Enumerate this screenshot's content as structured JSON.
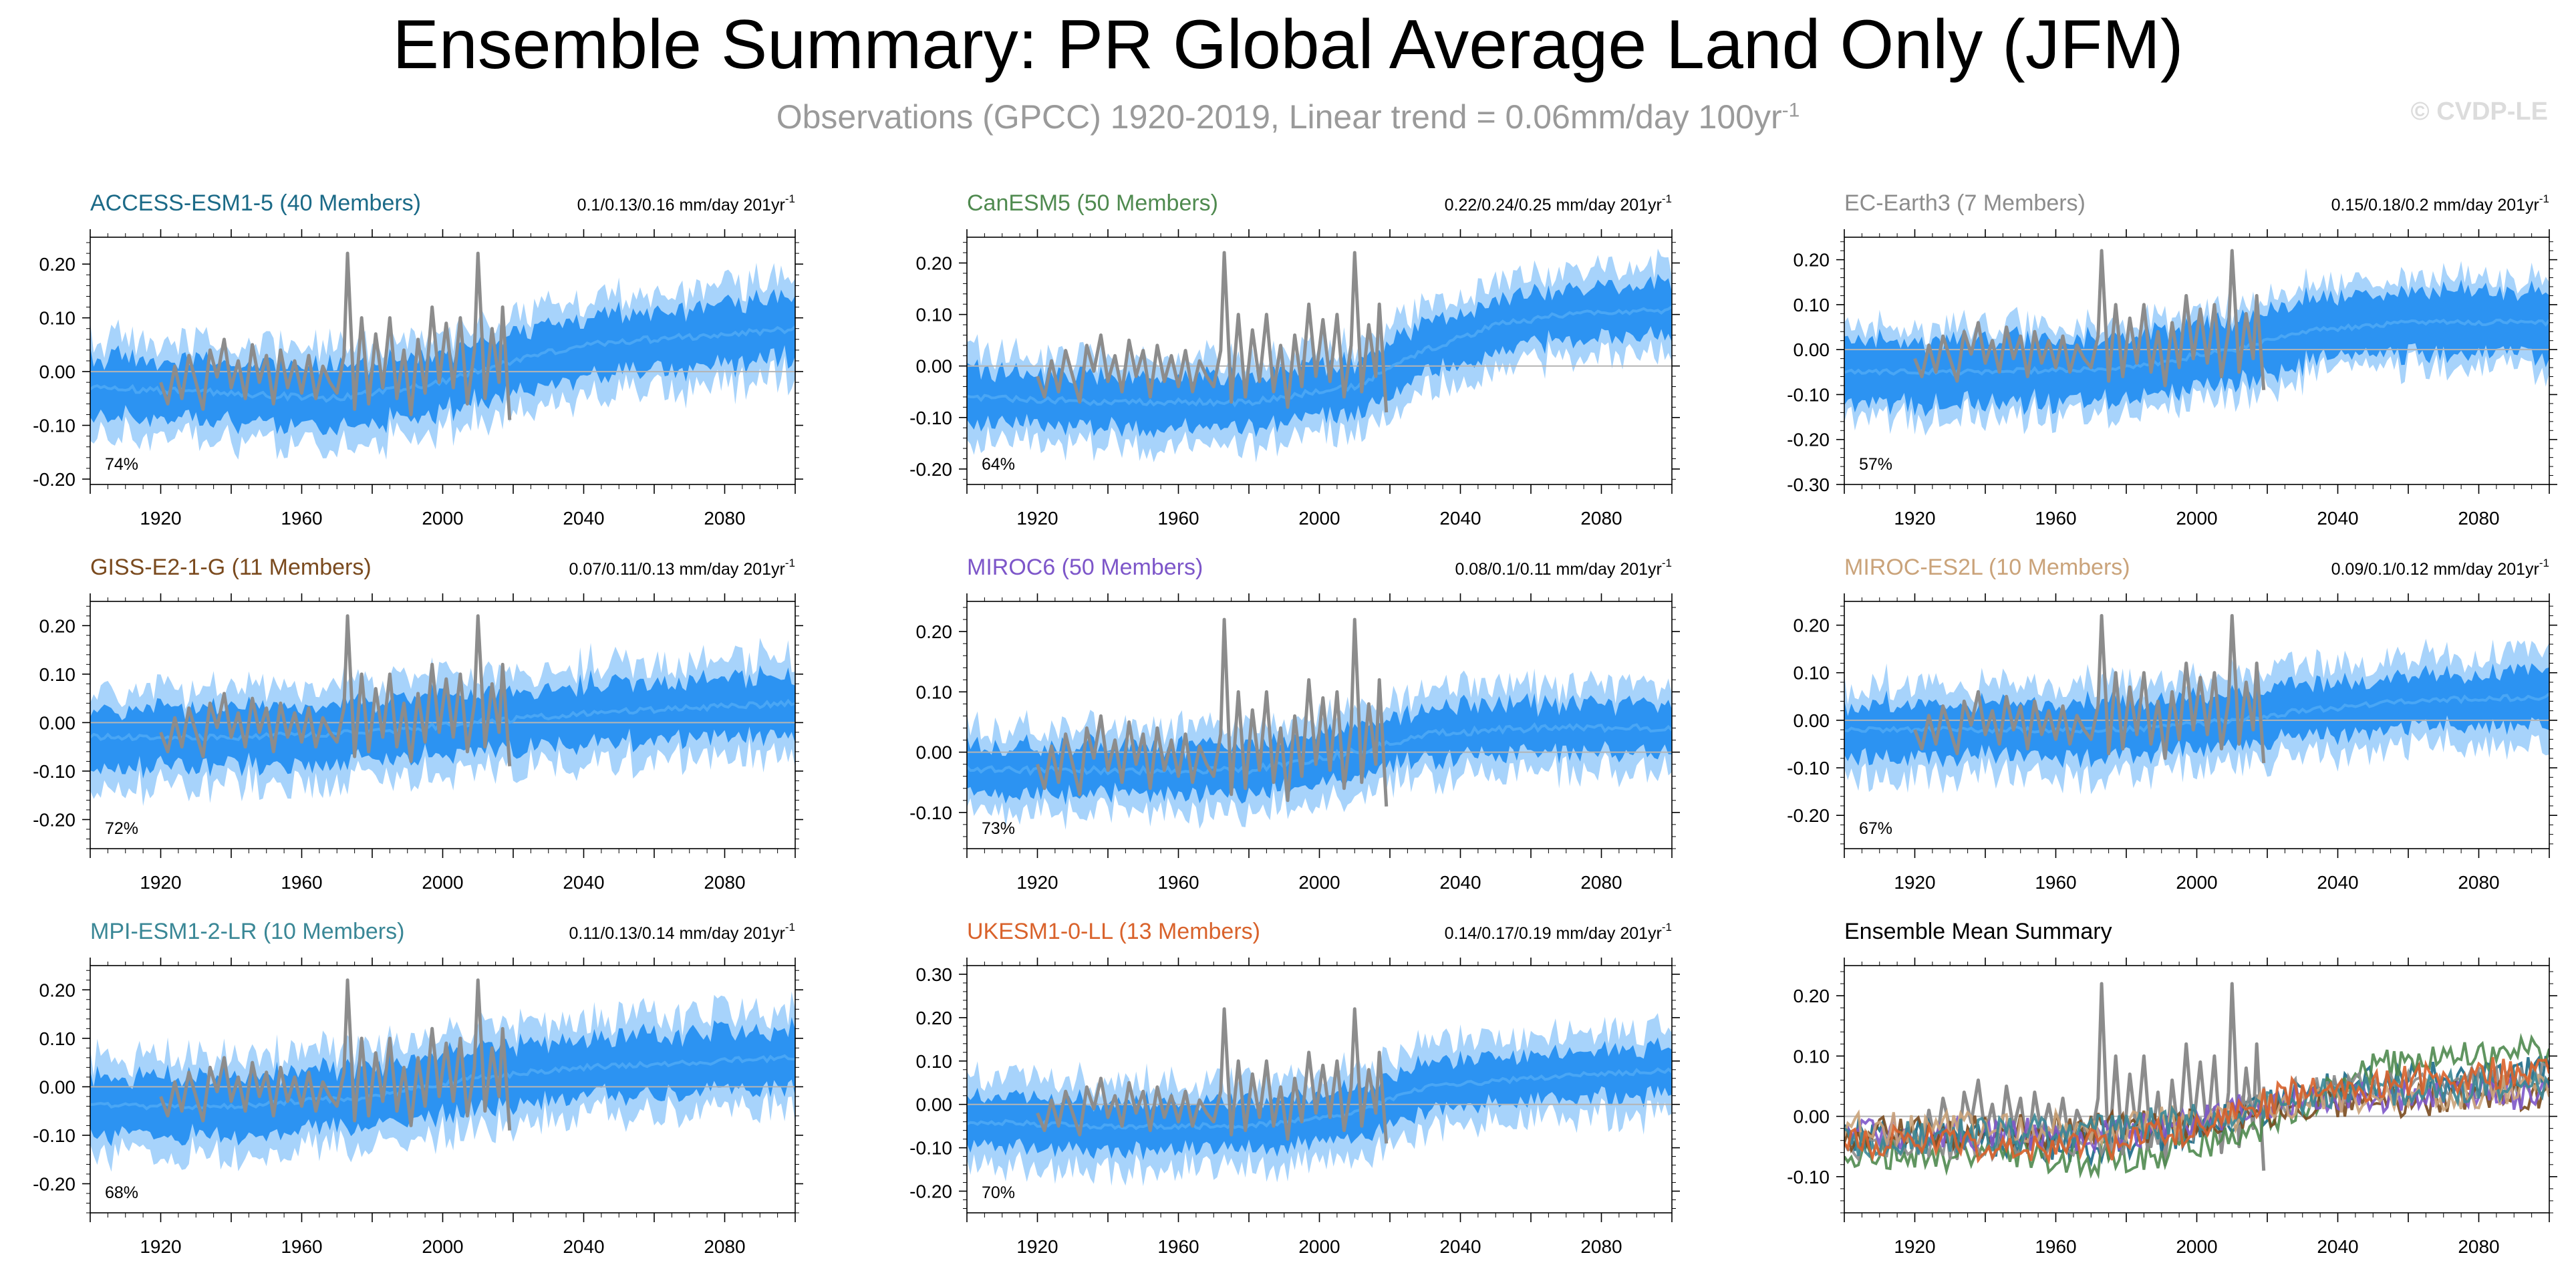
{
  "title": "Ensemble Summary: PR Global Average Land Only (JFM)",
  "subtitle_main": "Observations (GPCC) 1920-2019, Linear trend = 0.06mm/day 100yr",
  "subtitle_sup": "-1",
  "watermark": "© CVDP-LE",
  "colors": {
    "obs": "#8c8c8c",
    "band_outer": "#a7d3fb",
    "band_inner": "#2c93f2",
    "mean": "#4da8f5",
    "zero_line": "#b4b4b4"
  },
  "chart_data": [
    {
      "type": "area",
      "title": "ACCESS-ESM1-5 (40 Members)",
      "title_color": "#1b6a87",
      "trend_text": "0.1/0.13/0.16 mm/day 201yr",
      "trend_sup": "-1",
      "percent_label": "74%",
      "xlim": [
        1900,
        2100
      ],
      "ylim": [
        -0.21,
        0.25
      ],
      "yticks": [
        "0.20",
        "0.10",
        "0.00",
        "-0.10",
        "-0.20"
      ],
      "ytick_values": [
        0.2,
        0.1,
        0.0,
        -0.1,
        -0.2
      ],
      "xticks": [
        "1920",
        "1960",
        "2000",
        "2040",
        "2080"
      ],
      "ensemble_mean": [
        [
          1900,
          -0.03
        ],
        [
          1940,
          -0.04
        ],
        [
          1970,
          -0.05
        ],
        [
          2000,
          -0.02
        ],
        [
          2020,
          0.02
        ],
        [
          2040,
          0.05
        ],
        [
          2060,
          0.06
        ],
        [
          2080,
          0.07
        ],
        [
          2100,
          0.08
        ]
      ],
      "spread_inner_halfwidth": 0.055,
      "spread_outer_halfwidth": 0.09
    },
    {
      "type": "area",
      "title": "CanESM5 (50 Members)",
      "title_color": "#4f8a4f",
      "trend_text": "0.22/0.24/0.25 mm/day 201yr",
      "trend_sup": "-1",
      "percent_label": "64%",
      "xlim": [
        1900,
        2100
      ],
      "ylim": [
        -0.23,
        0.25
      ],
      "yticks": [
        "0.20",
        "0.10",
        "0.00",
        "-0.10",
        "-0.20"
      ],
      "ytick_values": [
        0.2,
        0.1,
        0.0,
        -0.1,
        -0.2
      ],
      "xticks": [
        "1920",
        "1960",
        "2000",
        "2040",
        "2080"
      ],
      "ensemble_mean": [
        [
          1900,
          -0.06
        ],
        [
          1940,
          -0.07
        ],
        [
          1980,
          -0.07
        ],
        [
          2010,
          -0.04
        ],
        [
          2030,
          0.03
        ],
        [
          2050,
          0.08
        ],
        [
          2070,
          0.1
        ],
        [
          2100,
          0.11
        ]
      ],
      "spread_inner_halfwidth": 0.05,
      "spread_outer_halfwidth": 0.085
    },
    {
      "type": "area",
      "title": "EC-Earth3 (7 Members)",
      "title_color": "#8c8c8c",
      "trend_text": "0.15/0.18/0.2 mm/day 201yr",
      "trend_sup": "-1",
      "percent_label": "57%",
      "xlim": [
        1900,
        2100
      ],
      "ylim": [
        -0.3,
        0.25
      ],
      "yticks": [
        "0.20",
        "0.10",
        "0.00",
        "-0.10",
        "-0.20",
        "-0.30"
      ],
      "ytick_values": [
        0.2,
        0.1,
        0.0,
        -0.1,
        -0.2,
        -0.3
      ],
      "xticks": [
        "1920",
        "1960",
        "2000",
        "2040",
        "2080"
      ],
      "ensemble_mean": [
        [
          1900,
          -0.05
        ],
        [
          1940,
          -0.05
        ],
        [
          1980,
          -0.04
        ],
        [
          2010,
          0.0
        ],
        [
          2030,
          0.04
        ],
        [
          2060,
          0.06
        ],
        [
          2100,
          0.06
        ]
      ],
      "spread_inner_halfwidth": 0.07,
      "spread_outer_halfwidth": 0.1
    },
    {
      "type": "area",
      "title": "GISS-E2-1-G (11 Members)",
      "title_color": "#7a4a1e",
      "trend_text": "0.07/0.11/0.13 mm/day 201yr",
      "trend_sup": "-1",
      "percent_label": "72%",
      "xlim": [
        1900,
        2100
      ],
      "ylim": [
        -0.26,
        0.25
      ],
      "yticks": [
        "0.20",
        "0.10",
        "0.00",
        "-0.10",
        "-0.20"
      ],
      "ytick_values": [
        0.2,
        0.1,
        0.0,
        -0.1,
        -0.2
      ],
      "xticks": [
        "1920",
        "1960",
        "2000",
        "2040",
        "2080"
      ],
      "ensemble_mean": [
        [
          1900,
          -0.03
        ],
        [
          1940,
          -0.03
        ],
        [
          1980,
          -0.02
        ],
        [
          2010,
          0.0
        ],
        [
          2040,
          0.02
        ],
        [
          2070,
          0.03
        ],
        [
          2100,
          0.04
        ]
      ],
      "spread_inner_halfwidth": 0.06,
      "spread_outer_halfwidth": 0.1
    },
    {
      "type": "area",
      "title": "MIROC6 (50 Members)",
      "title_color": "#7d56c9",
      "trend_text": "0.08/0.1/0.11 mm/day 201yr",
      "trend_sup": "-1",
      "percent_label": "73%",
      "xlim": [
        1900,
        2100
      ],
      "ylim": [
        -0.16,
        0.25
      ],
      "yticks": [
        "0.20",
        "0.10",
        "0.00",
        "-0.10"
      ],
      "ytick_values": [
        0.2,
        0.1,
        0.0,
        -0.1
      ],
      "xticks": [
        "1920",
        "1960",
        "2000",
        "2040",
        "2080"
      ],
      "ensemble_mean": [
        [
          1900,
          -0.03
        ],
        [
          1940,
          -0.03
        ],
        [
          1980,
          -0.03
        ],
        [
          2010,
          0.0
        ],
        [
          2030,
          0.03
        ],
        [
          2060,
          0.04
        ],
        [
          2100,
          0.04
        ]
      ],
      "spread_inner_halfwidth": 0.04,
      "spread_outer_halfwidth": 0.07
    },
    {
      "type": "area",
      "title": "MIROC-ES2L (10 Members)",
      "title_color": "#caa37a",
      "trend_text": "0.09/0.1/0.12 mm/day 201yr",
      "trend_sup": "-1",
      "percent_label": "67%",
      "xlim": [
        1900,
        2100
      ],
      "ylim": [
        -0.27,
        0.25
      ],
      "yticks": [
        "0.20",
        "0.10",
        "0.00",
        "-0.10",
        "-0.20"
      ],
      "ytick_values": [
        0.2,
        0.1,
        0.0,
        -0.1,
        -0.2
      ],
      "xticks": [
        "1920",
        "1960",
        "2000",
        "2040",
        "2080"
      ],
      "ensemble_mean": [
        [
          1900,
          -0.02
        ],
        [
          1940,
          -0.02
        ],
        [
          1980,
          -0.02
        ],
        [
          2010,
          0.0
        ],
        [
          2030,
          0.02
        ],
        [
          2060,
          0.04
        ],
        [
          2100,
          0.05
        ]
      ],
      "spread_inner_halfwidth": 0.055,
      "spread_outer_halfwidth": 0.095
    },
    {
      "type": "area",
      "title": "MPI-ESM1-2-LR (10 Members)",
      "title_color": "#3a8796",
      "trend_text": "0.11/0.13/0.14 mm/day 201yr",
      "trend_sup": "-1",
      "percent_label": "68%",
      "xlim": [
        1900,
        2100
      ],
      "ylim": [
        -0.26,
        0.25
      ],
      "yticks": [
        "0.20",
        "0.10",
        "0.00",
        "-0.10",
        "-0.20"
      ],
      "ytick_values": [
        0.2,
        0.1,
        0.0,
        -0.1,
        -0.2
      ],
      "xticks": [
        "1920",
        "1960",
        "2000",
        "2040",
        "2080"
      ],
      "ensemble_mean": [
        [
          1900,
          -0.04
        ],
        [
          1940,
          -0.04
        ],
        [
          1980,
          -0.02
        ],
        [
          2010,
          0.02
        ],
        [
          2040,
          0.04
        ],
        [
          2070,
          0.05
        ],
        [
          2100,
          0.06
        ]
      ],
      "spread_inner_halfwidth": 0.06,
      "spread_outer_halfwidth": 0.1
    },
    {
      "type": "area",
      "title": "UKESM1-0-LL (13 Members)",
      "title_color": "#d9622b",
      "trend_text": "0.14/0.17/0.19 mm/day 201yr",
      "trend_sup": "-1",
      "percent_label": "70%",
      "xlim": [
        1900,
        2100
      ],
      "ylim": [
        -0.25,
        0.32
      ],
      "yticks": [
        "0.30",
        "0.20",
        "0.10",
        "0.00",
        "-0.10",
        "-0.20"
      ],
      "ytick_values": [
        0.3,
        0.2,
        0.1,
        0.0,
        -0.1,
        -0.2
      ],
      "xticks": [
        "1920",
        "1960",
        "2000",
        "2040",
        "2080"
      ],
      "ensemble_mean": [
        [
          1900,
          -0.04
        ],
        [
          1940,
          -0.05
        ],
        [
          1980,
          -0.05
        ],
        [
          2010,
          -0.02
        ],
        [
          2030,
          0.04
        ],
        [
          2060,
          0.06
        ],
        [
          2100,
          0.08
        ]
      ],
      "spread_inner_halfwidth": 0.055,
      "spread_outer_halfwidth": 0.1
    },
    {
      "type": "line",
      "title": "Ensemble Mean Summary",
      "title_color": "#000000",
      "xlim": [
        1900,
        2100
      ],
      "ylim": [
        -0.16,
        0.25
      ],
      "yticks": [
        "0.20",
        "0.10",
        "0.00",
        "-0.10"
      ],
      "ytick_values": [
        0.2,
        0.1,
        0.0,
        -0.1
      ],
      "xticks": [
        "1920",
        "1960",
        "2000",
        "2040",
        "2080"
      ],
      "series": [
        {
          "color": "#1b6a87",
          "values": [
            [
              1900,
              -0.03
            ],
            [
              1970,
              -0.05
            ],
            [
              2000,
              -0.02
            ],
            [
              2040,
              0.05
            ],
            [
              2100,
              0.08
            ]
          ]
        },
        {
          "color": "#4f8a4f",
          "values": [
            [
              1900,
              -0.06
            ],
            [
              1980,
              -0.07
            ],
            [
              2010,
              -0.04
            ],
            [
              2050,
              0.08
            ],
            [
              2100,
              0.11
            ]
          ]
        },
        {
          "color": "#8c8c8c",
          "values": [
            [
              1900,
              -0.05
            ],
            [
              1980,
              -0.04
            ],
            [
              2030,
              0.04
            ],
            [
              2100,
              0.06
            ]
          ]
        },
        {
          "color": "#7a4a1e",
          "values": [
            [
              1900,
              -0.03
            ],
            [
              1980,
              -0.02
            ],
            [
              2040,
              0.02
            ],
            [
              2100,
              0.04
            ]
          ]
        },
        {
          "color": "#7d56c9",
          "values": [
            [
              1900,
              -0.03
            ],
            [
              1980,
              -0.03
            ],
            [
              2030,
              0.03
            ],
            [
              2100,
              0.04
            ]
          ]
        },
        {
          "color": "#caa37a",
          "values": [
            [
              1900,
              -0.02
            ],
            [
              1980,
              -0.02
            ],
            [
              2030,
              0.02
            ],
            [
              2100,
              0.05
            ]
          ]
        },
        {
          "color": "#3a8796",
          "values": [
            [
              1900,
              -0.04
            ],
            [
              1980,
              -0.02
            ],
            [
              2040,
              0.04
            ],
            [
              2100,
              0.06
            ]
          ]
        },
        {
          "color": "#d9622b",
          "values": [
            [
              1900,
              -0.04
            ],
            [
              1980,
              -0.05
            ],
            [
              2030,
              0.04
            ],
            [
              2100,
              0.08
            ]
          ]
        }
      ]
    }
  ],
  "observations": {
    "range": [
      1920,
      2019
    ],
    "values": [
      [
        1920,
        -0.02
      ],
      [
        1922,
        -0.06
      ],
      [
        1924,
        0.01
      ],
      [
        1926,
        -0.05
      ],
      [
        1928,
        0.03
      ],
      [
        1930,
        -0.02
      ],
      [
        1932,
        -0.07
      ],
      [
        1934,
        0.04
      ],
      [
        1936,
        -0.01
      ],
      [
        1938,
        0.06
      ],
      [
        1940,
        -0.03
      ],
      [
        1942,
        0.02
      ],
      [
        1944,
        -0.05
      ],
      [
        1946,
        0.05
      ],
      [
        1948,
        -0.02
      ],
      [
        1950,
        0.03
      ],
      [
        1952,
        -0.06
      ],
      [
        1954,
        0.04
      ],
      [
        1956,
        -0.03
      ],
      [
        1958,
        0.02
      ],
      [
        1960,
        -0.04
      ],
      [
        1962,
        0.03
      ],
      [
        1964,
        -0.05
      ],
      [
        1966,
        0.01
      ],
      [
        1968,
        -0.02
      ],
      [
        1970,
        -0.04
      ],
      [
        1972,
        0.03
      ],
      [
        1973,
        0.22
      ],
      [
        1975,
        -0.07
      ],
      [
        1977,
        0.1
      ],
      [
        1979,
        -0.06
      ],
      [
        1981,
        0.07
      ],
      [
        1983,
        -0.03
      ],
      [
        1985,
        0.1
      ],
      [
        1987,
        -0.05
      ],
      [
        1989,
        0.04
      ],
      [
        1991,
        -0.08
      ],
      [
        1993,
        0.06
      ],
      [
        1995,
        -0.04
      ],
      [
        1997,
        0.12
      ],
      [
        1999,
        -0.02
      ],
      [
        2001,
        0.09
      ],
      [
        2003,
        -0.03
      ],
      [
        2005,
        0.1
      ],
      [
        2007,
        -0.06
      ],
      [
        2009,
        0.04
      ],
      [
        2010,
        0.22
      ],
      [
        2012,
        -0.05
      ],
      [
        2014,
        0.08
      ],
      [
        2016,
        -0.02
      ],
      [
        2017,
        0.12
      ],
      [
        2019,
        -0.09
      ]
    ]
  }
}
